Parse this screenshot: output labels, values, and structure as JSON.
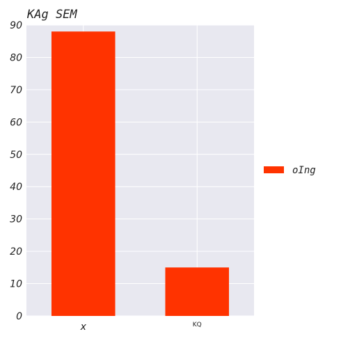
{
  "chart_data": {
    "type": "bar",
    "title": "KAg SEM",
    "categories": [
      "x",
      "KQ"
    ],
    "series": [
      {
        "name": "oIng",
        "values": [
          88,
          15
        ],
        "color": "#ff3300"
      }
    ],
    "ylim": [
      0,
      90
    ],
    "yticks": [
      "0",
      "10",
      "20",
      "30",
      "40",
      "50",
      "60",
      "70",
      "80",
      "90"
    ],
    "grid": true,
    "legend_position": "right",
    "background_color": "#e8e8f0"
  }
}
